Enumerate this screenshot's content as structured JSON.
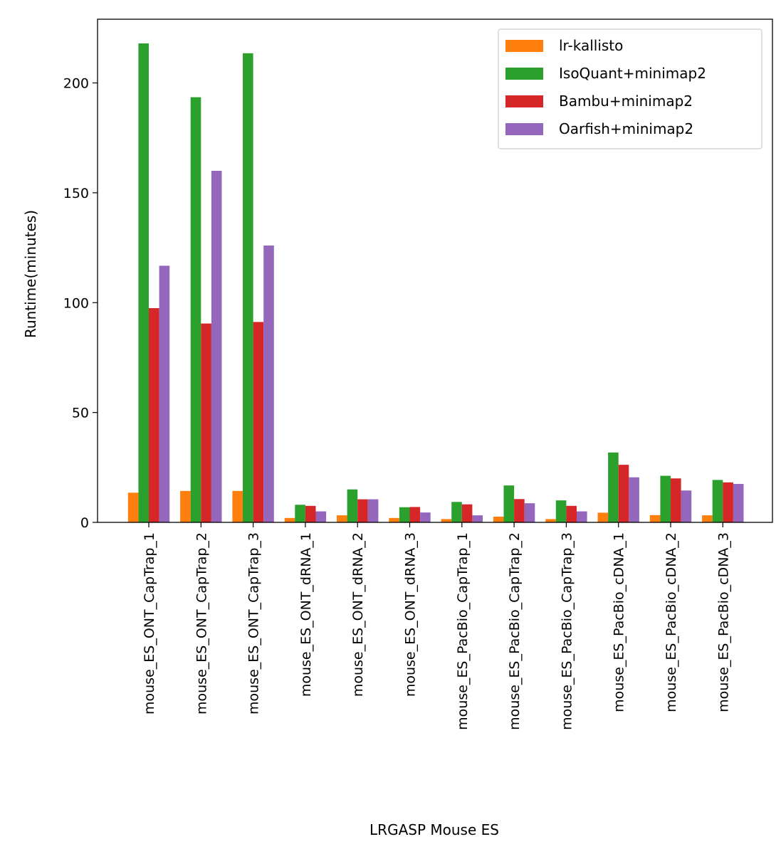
{
  "chart_data": {
    "type": "bar",
    "title": "",
    "xlabel": "LRGASP Mouse ES",
    "ylabel": "Runtime(minutes)",
    "ylim": [
      0,
      229
    ],
    "yticks": [
      0,
      50,
      100,
      150,
      200
    ],
    "grid": false,
    "legend_position": "top-right",
    "categories": [
      "mouse_ES_ONT_CapTrap_1",
      "mouse_ES_ONT_CapTrap_2",
      "mouse_ES_ONT_CapTrap_3",
      "mouse_ES_ONT_dRNA_1",
      "mouse_ES_ONT_dRNA_2",
      "mouse_ES_ONT_dRNA_3",
      "mouse_ES_PacBio_CapTrap_1",
      "mouse_ES_PacBio_CapTrap_2",
      "mouse_ES_PacBio_CapTrap_3",
      "mouse_ES_PacBio_cDNA_1",
      "mouse_ES_PacBio_cDNA_2",
      "mouse_ES_PacBio_cDNA_3"
    ],
    "series": [
      {
        "name": "lr-kallisto",
        "color": "#ff7f0e",
        "values": [
          13.5,
          14.3,
          14.3,
          2.0,
          3.2,
          2.0,
          1.5,
          2.6,
          1.5,
          4.4,
          3.3,
          3.2
        ]
      },
      {
        "name": "IsoQuant+minimap2",
        "color": "#2ca02c",
        "values": [
          218,
          193.5,
          213.5,
          8.0,
          15.0,
          6.9,
          9.3,
          16.8,
          10.0,
          31.8,
          21.2,
          19.3
        ]
      },
      {
        "name": "Bambu+minimap2",
        "color": "#d62728",
        "values": [
          97.5,
          90.5,
          91.2,
          7.5,
          10.5,
          7.0,
          8.2,
          10.6,
          7.5,
          26.2,
          20.0,
          18.2
        ]
      },
      {
        "name": "Oarfish+minimap2",
        "color": "#9467bd",
        "values": [
          116.8,
          160,
          126,
          5.0,
          10.5,
          4.5,
          3.2,
          8.7,
          5.0,
          20.5,
          14.5,
          17.5
        ]
      }
    ]
  }
}
